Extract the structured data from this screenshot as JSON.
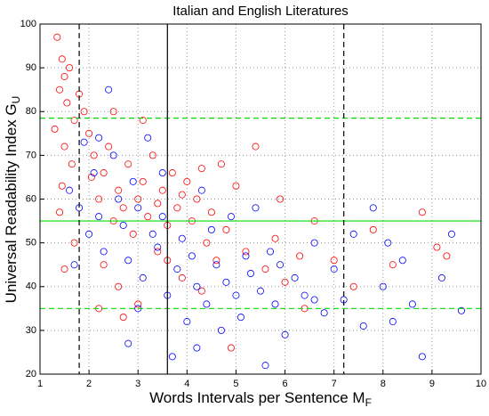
{
  "chart_data": {
    "type": "scatter",
    "title": "Italian and English Literatures",
    "xlabel": "Words Intervals per Sentence M",
    "xlabel_subscript": "F",
    "ylabel": "Universal Readability Index G",
    "ylabel_subscript": "U",
    "xlim": [
      1,
      10
    ],
    "ylim": [
      20,
      100
    ],
    "xticks": [
      1,
      2,
      3,
      4,
      5,
      6,
      7,
      8,
      9,
      10
    ],
    "yticks": [
      20,
      30,
      40,
      50,
      60,
      70,
      80,
      90,
      100
    ],
    "grid": true,
    "reference_lines": {
      "vertical": [
        {
          "x": 1.8,
          "color": "#000000",
          "style": "dashed"
        },
        {
          "x": 3.6,
          "color": "#000000",
          "style": "solid"
        },
        {
          "x": 7.2,
          "color": "#000000",
          "style": "dashed"
        }
      ],
      "horizontal": [
        {
          "y": 78.5,
          "color": "#00dd00",
          "style": "dashed"
        },
        {
          "y": 55,
          "color": "#00dd00",
          "style": "solid"
        },
        {
          "y": 35,
          "color": "#00dd00",
          "style": "dashed"
        }
      ]
    },
    "series": [
      {
        "color": "#ff0000",
        "x": [
          1.35,
          1.45,
          1.5,
          1.4,
          1.6,
          1.55,
          1.3,
          1.5,
          1.65,
          1.45,
          1.4,
          1.5,
          1.7,
          1.8,
          1.9,
          2.0,
          2.1,
          2.05,
          2.2,
          2.3,
          2.4,
          2.5,
          2.6,
          2.7,
          2.8,
          2.9,
          3.0,
          3.1,
          3.2,
          3.3,
          3.4,
          3.5,
          3.6,
          3.7,
          3.8,
          3.9,
          4.0,
          4.1,
          4.2,
          4.3,
          4.4,
          4.5,
          4.6,
          4.8,
          5.0,
          5.2,
          5.4,
          5.6,
          5.8,
          6.0,
          6.3,
          6.6,
          7.0,
          7.4,
          7.8,
          8.2,
          8.8,
          9.1,
          9.3,
          2.3,
          2.6,
          3.0,
          3.4,
          3.9,
          2.2,
          1.7,
          2.5,
          3.1,
          4.7,
          5.9,
          6.4,
          4.9,
          2.7,
          3.6,
          4.3
        ],
        "values": [
          97,
          92,
          88,
          85,
          90,
          82,
          76,
          72,
          68,
          63,
          57,
          44,
          78,
          84,
          80,
          75,
          70,
          65,
          60,
          66,
          72,
          55,
          62,
          58,
          68,
          52,
          60,
          64,
          56,
          70,
          59,
          62,
          54,
          66,
          58,
          61,
          64,
          55,
          60,
          67,
          50,
          57,
          46,
          53,
          63,
          48,
          72,
          44,
          51,
          41,
          47,
          55,
          46,
          40,
          53,
          45,
          57,
          49,
          47,
          45,
          40,
          36,
          48,
          42,
          35,
          50,
          80,
          78,
          68,
          60,
          35,
          26,
          33,
          46,
          39
        ]
      },
      {
        "color": "#0000ff",
        "x": [
          1.6,
          1.7,
          1.8,
          1.9,
          2.0,
          2.1,
          2.2,
          2.3,
          2.4,
          2.5,
          2.6,
          2.7,
          2.8,
          2.9,
          3.0,
          3.1,
          3.2,
          3.3,
          3.4,
          3.5,
          3.6,
          3.7,
          3.8,
          3.9,
          4.0,
          4.1,
          4.2,
          4.3,
          4.4,
          4.5,
          4.6,
          4.7,
          4.8,
          4.9,
          5.0,
          5.1,
          5.2,
          5.3,
          5.5,
          5.6,
          5.7,
          5.8,
          5.9,
          6.0,
          6.2,
          6.4,
          6.6,
          6.8,
          7.0,
          7.2,
          7.4,
          7.6,
          7.8,
          8.0,
          8.2,
          8.4,
          8.6,
          8.8,
          9.2,
          9.4,
          9.6,
          2.8,
          3.0,
          4.2,
          2.2,
          3.5,
          5.4,
          6.6,
          8.1
        ],
        "values": [
          62,
          45,
          58,
          73,
          52,
          66,
          56,
          48,
          85,
          70,
          60,
          54,
          46,
          64,
          58,
          42,
          74,
          52,
          49,
          56,
          38,
          24,
          44,
          51,
          32,
          47,
          40,
          62,
          36,
          53,
          45,
          30,
          41,
          56,
          38,
          33,
          47,
          43,
          39,
          22,
          48,
          36,
          45,
          29,
          42,
          38,
          50,
          34,
          44,
          37,
          52,
          31,
          58,
          40,
          32,
          46,
          36,
          24,
          42,
          52,
          34.5,
          27,
          35,
          26,
          74,
          66,
          58,
          37,
          50
        ]
      }
    ]
  }
}
